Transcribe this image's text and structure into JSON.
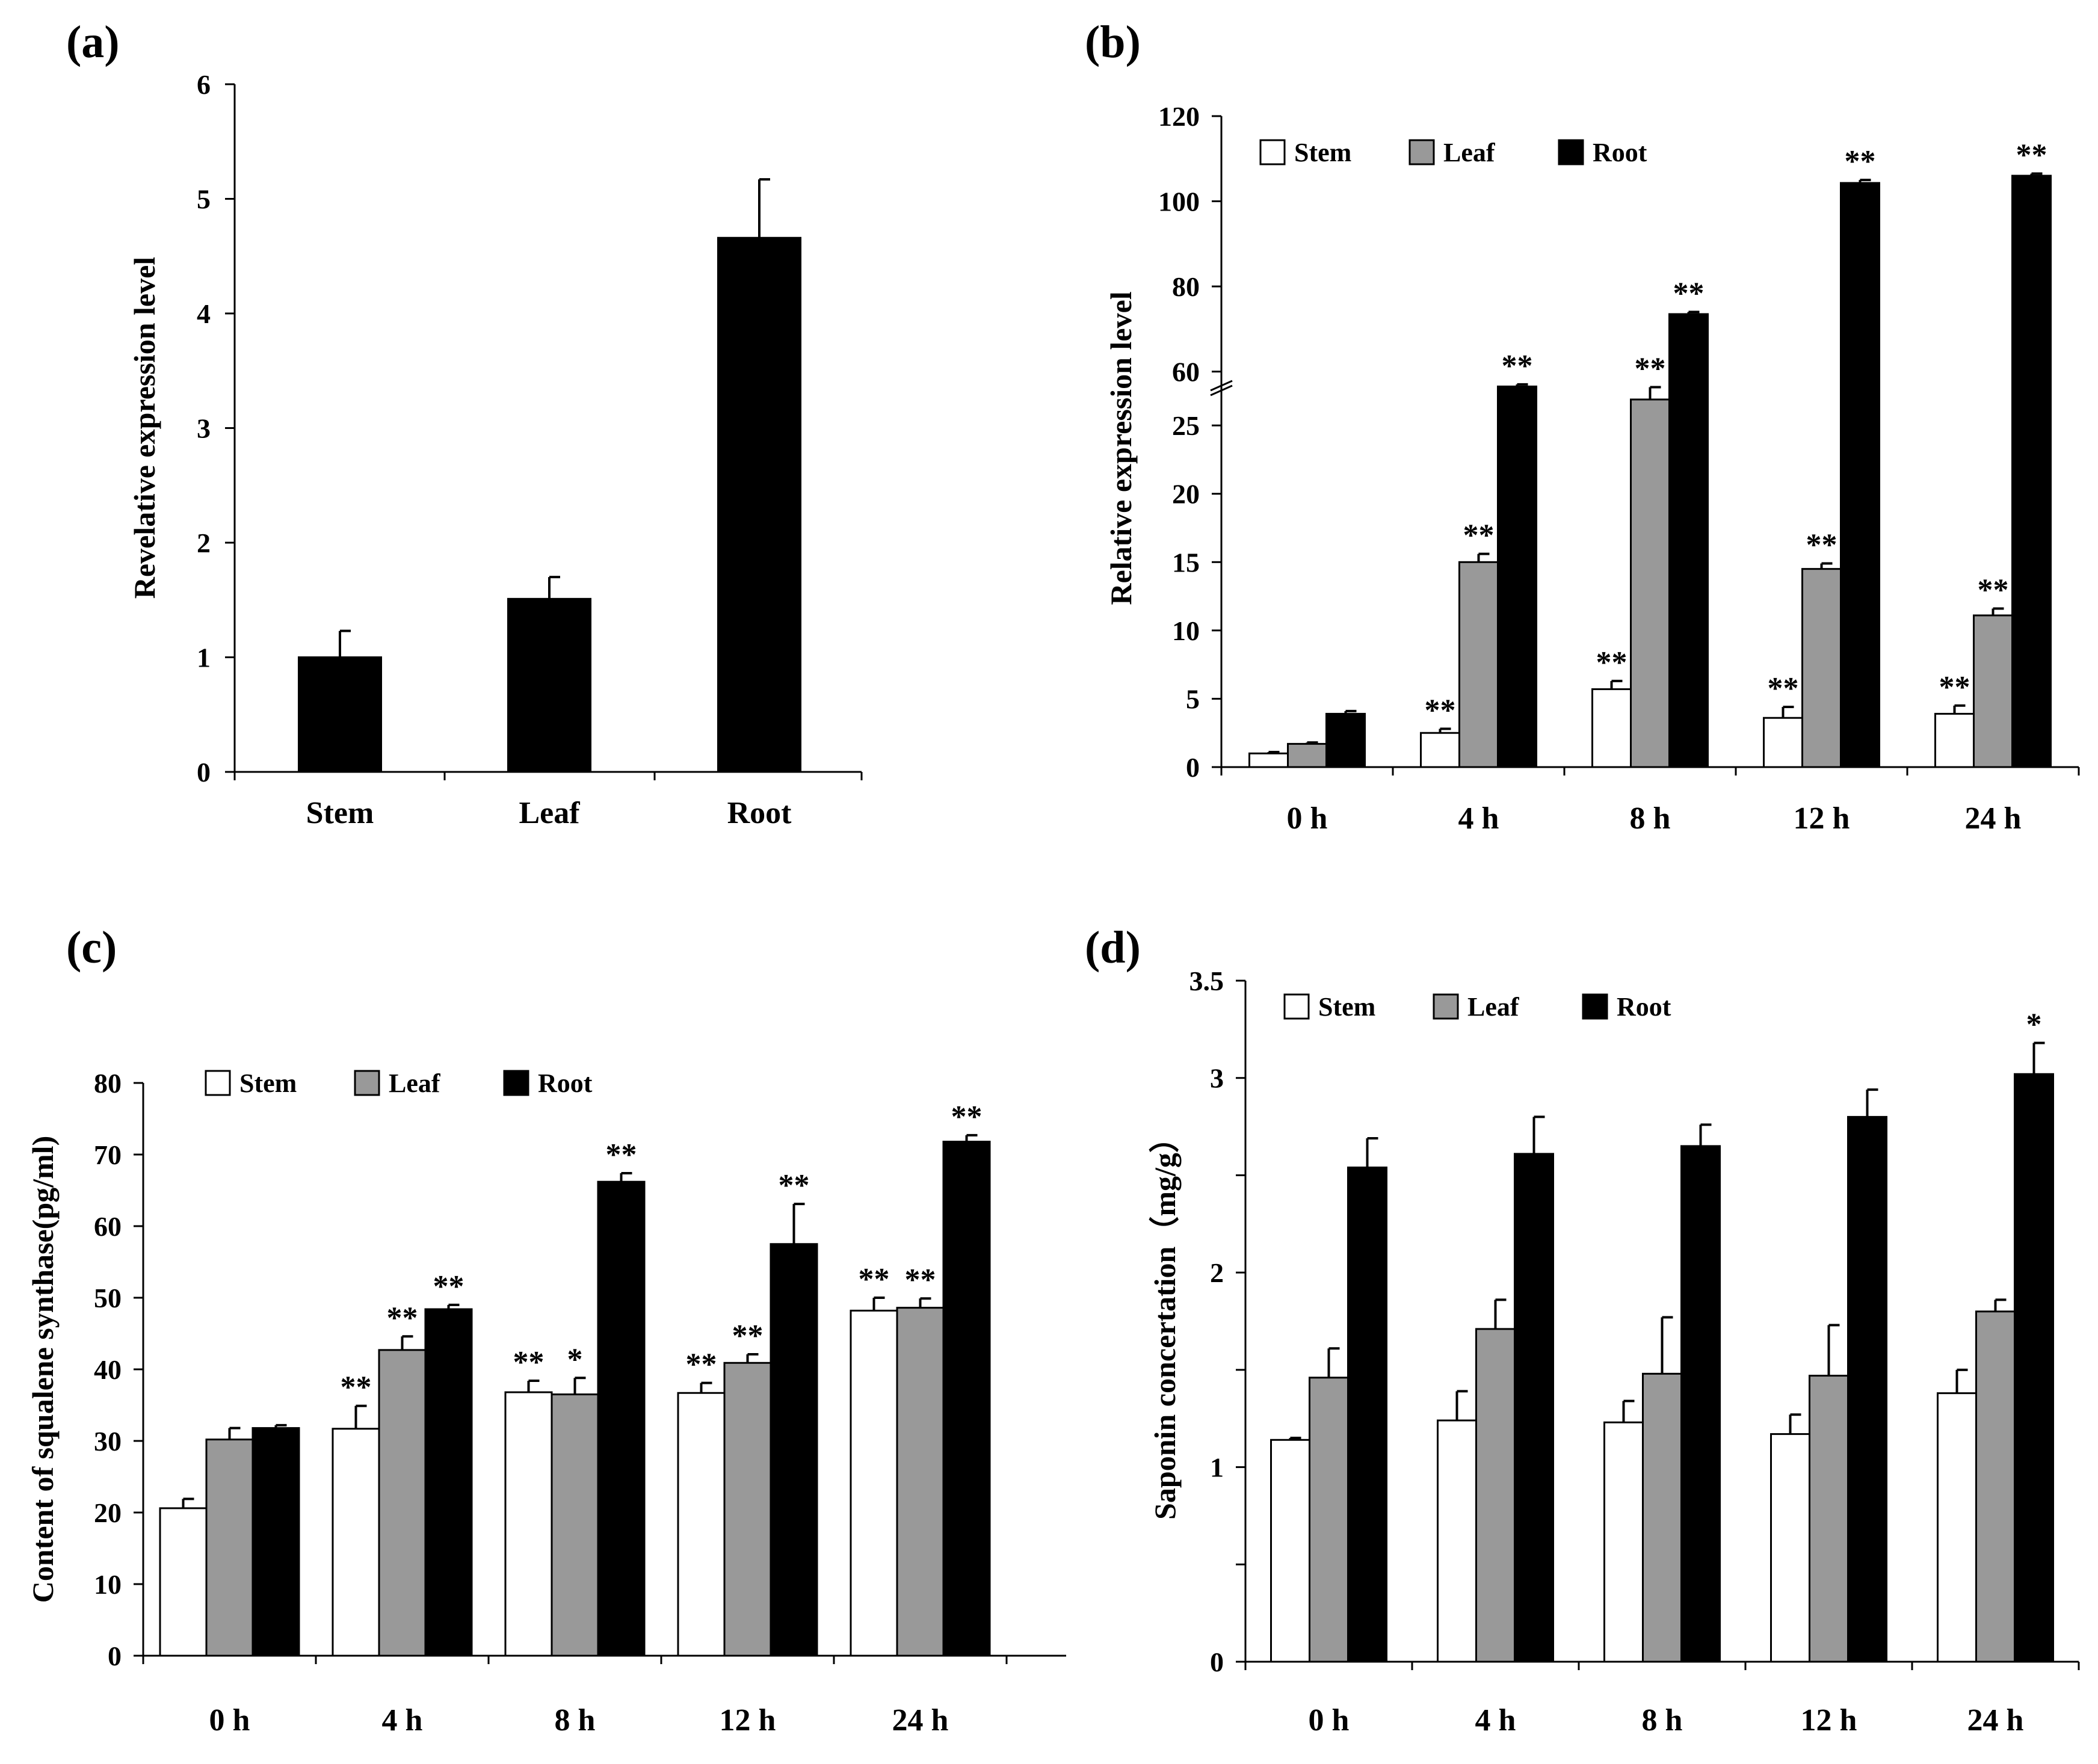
{
  "chart_data": [
    {
      "panel": "(a)",
      "type": "bar",
      "title": "",
      "xlabel": "",
      "ylabel": "Revelative expression level",
      "ylim": [
        0,
        6
      ],
      "yticks": [
        0,
        1,
        2,
        3,
        4,
        5,
        6
      ],
      "categories": [
        "Stem",
        "Leaf",
        "Root"
      ],
      "series": [
        {
          "name": "",
          "color": "#000000",
          "values": [
            1.0,
            1.51,
            4.66
          ],
          "errors": [
            0.23,
            0.19,
            0.51
          ]
        }
      ]
    },
    {
      "panel": "(b)",
      "type": "bar",
      "title": "",
      "xlabel": "",
      "ylabel": "Relative expression level",
      "axis_break": [
        28,
        55
      ],
      "ylim_lower": [
        0,
        28
      ],
      "ylim_upper": [
        55,
        120
      ],
      "yticks_lower": [
        0,
        5,
        10,
        15,
        20,
        25
      ],
      "yticks_upper": [
        60,
        80,
        100,
        120
      ],
      "categories": [
        "0 h",
        "4 h",
        "8 h",
        "12 h",
        "24 h"
      ],
      "legend": [
        "Stem",
        "Leaf",
        "Root"
      ],
      "series": [
        {
          "name": "Stem",
          "color": "#ffffff",
          "values": [
            1.0,
            2.5,
            5.7,
            3.6,
            3.9
          ],
          "errors": [
            0.1,
            0.3,
            0.6,
            0.8,
            0.6
          ],
          "marks": [
            "",
            "**",
            "**",
            "**",
            "**"
          ]
        },
        {
          "name": "Leaf",
          "color": "#999999",
          "values": [
            1.7,
            15.0,
            26.9,
            14.5,
            11.1
          ],
          "errors": [
            0.1,
            0.6,
            0.9,
            0.4,
            0.5
          ],
          "marks": [
            "",
            "**",
            "**",
            "**",
            "**"
          ]
        },
        {
          "name": "Root",
          "color": "#000000",
          "values": [
            3.9,
            56.5,
            73.5,
            104.3,
            106.0
          ],
          "errors": [
            0.2,
            0.5,
            0.5,
            0.7,
            0.5
          ],
          "marks": [
            "",
            "**",
            "**",
            "**",
            "**"
          ]
        }
      ]
    },
    {
      "panel": "(c)",
      "type": "bar",
      "title": "",
      "xlabel": "",
      "ylabel": "Content of squalene synthase(pg/ml)",
      "ylim": [
        0,
        80
      ],
      "yticks": [
        0,
        10,
        20,
        30,
        40,
        50,
        60,
        70,
        80
      ],
      "categories": [
        "0 h",
        "4 h",
        "8 h",
        "12 h",
        "24 h"
      ],
      "legend": [
        "Stem",
        "Leaf",
        "Root"
      ],
      "series": [
        {
          "name": "Stem",
          "color": "#ffffff",
          "values": [
            20.6,
            31.7,
            36.8,
            36.7,
            48.2
          ],
          "errors": [
            1.3,
            3.2,
            1.6,
            1.4,
            1.8
          ],
          "marks": [
            "",
            "**",
            "**",
            "**",
            "**"
          ]
        },
        {
          "name": "Leaf",
          "color": "#999999",
          "values": [
            30.2,
            42.7,
            36.5,
            40.9,
            48.6
          ],
          "errors": [
            1.6,
            1.9,
            2.3,
            1.2,
            1.3
          ],
          "marks": [
            "",
            "**",
            "*",
            "**",
            "**"
          ]
        },
        {
          "name": "Root",
          "color": "#000000",
          "values": [
            31.8,
            48.4,
            66.2,
            57.5,
            71.8
          ],
          "errors": [
            0.4,
            0.6,
            1.2,
            5.6,
            0.9
          ],
          "marks": [
            "",
            "**",
            "**",
            "**",
            "**"
          ]
        }
      ]
    },
    {
      "panel": "(d)",
      "type": "bar",
      "title": "",
      "xlabel": "",
      "ylabel": "Saponin concertation（mg/g）",
      "ylim": [
        0,
        3.5
      ],
      "yticks": [
        0,
        1,
        2,
        3,
        3.5
      ],
      "minor_yticks": [
        0.5,
        1.5,
        2.5
      ],
      "categories": [
        "0 h",
        "4 h",
        "8 h",
        "12 h",
        "24 h"
      ],
      "legend": [
        "Stem",
        "Leaf",
        "Root"
      ],
      "series": [
        {
          "name": "Stem",
          "color": "#ffffff",
          "values": [
            1.14,
            1.24,
            1.23,
            1.17,
            1.38
          ],
          "errors": [
            0.01,
            0.15,
            0.11,
            0.1,
            0.12
          ],
          "marks": [
            "",
            "",
            "",
            "",
            ""
          ]
        },
        {
          "name": "Leaf",
          "color": "#999999",
          "values": [
            1.46,
            1.71,
            1.48,
            1.47,
            1.8
          ],
          "errors": [
            0.15,
            0.15,
            0.29,
            0.26,
            0.06
          ],
          "marks": [
            "",
            "",
            "",
            "",
            ""
          ]
        },
        {
          "name": "Root",
          "color": "#000000",
          "values": [
            2.54,
            2.61,
            2.65,
            2.8,
            3.02
          ],
          "errors": [
            0.15,
            0.19,
            0.11,
            0.14,
            0.16
          ],
          "marks": [
            "",
            "",
            "",
            "",
            "*"
          ]
        }
      ]
    }
  ]
}
